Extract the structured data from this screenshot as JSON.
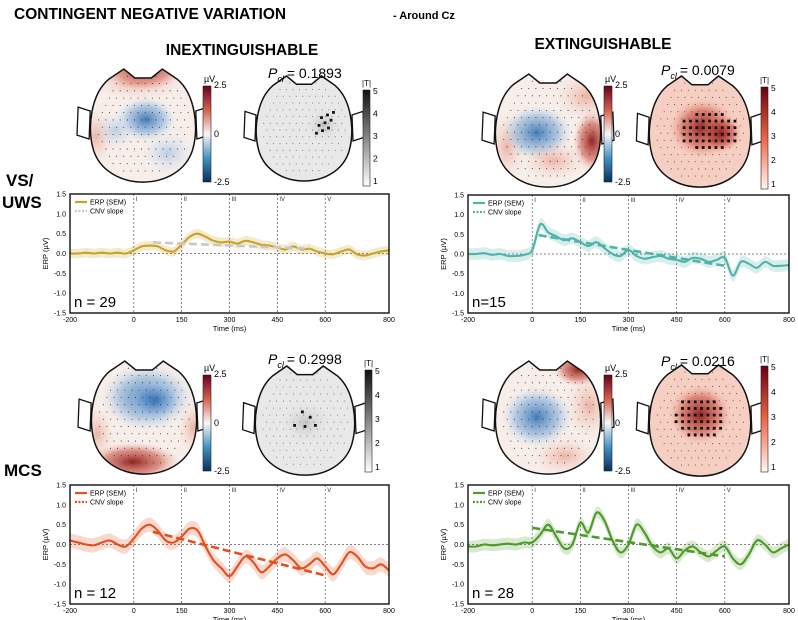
{
  "figure": {
    "title": "CONTINGENT NEGATIVE VARIATION",
    "subtitle": "- Around Cz",
    "columns": [
      "INEXTINGUISHABLE",
      "EXTINGUISHABLE"
    ],
    "rows": [
      [
        "VS/",
        "UWS"
      ],
      [
        "MCS"
      ]
    ]
  },
  "colorbars": {
    "uv_unit": "µV",
    "uv_ticks": [
      "2.5",
      "0",
      "-2.5"
    ],
    "t_unit": "|T|",
    "t_ticks": [
      "5",
      "4",
      "3",
      "2",
      "1"
    ]
  },
  "topomaps": [
    {
      "id": "vs-inext",
      "p_prefix": "P",
      "p_sub": "cl",
      "p_value": "= 0.1893",
      "pattern": "vs_inext"
    },
    {
      "id": "vs-ext",
      "p_prefix": "P",
      "p_sub": "cl",
      "p_value": "= 0.0079",
      "pattern": "vs_ext"
    },
    {
      "id": "mcs-inext",
      "p_prefix": "P",
      "p_sub": "cl",
      "p_value": "= 0.2998",
      "pattern": "mcs_inext"
    },
    {
      "id": "mcs-ext",
      "p_prefix": "P",
      "p_sub": "cl",
      "p_value": "= 0.0216",
      "pattern": "mcs_ext"
    }
  ],
  "colors": {
    "vs_inext": "#c9a227",
    "vs_ext": "#4fb3a9",
    "mcs_inext": "#e2501f",
    "mcs_ext": "#4c9a2a",
    "red": "#8b1a1a",
    "blue": "#2f6db0"
  },
  "chart_data": [
    {
      "type": "line",
      "id": "vs-inext",
      "group": "VS/UWS",
      "condition": "INEXTINGUISHABLE",
      "n_label": "n = 29",
      "xlabel": "Time (ms)",
      "ylabel": "ERP (µV)",
      "xlim": [
        -200,
        800
      ],
      "ylim": [
        -1.5,
        1.5
      ],
      "xticks": [
        "-200",
        "0",
        "150",
        "300",
        "450",
        "600",
        "800"
      ],
      "yticks": [
        "1.5",
        "1.0",
        "0.5",
        "0.0",
        "-0.5",
        "-1.0",
        "-1.5"
      ],
      "stimulus_marks": [
        0,
        150,
        300,
        450,
        600
      ],
      "stimulus_labels": [
        "I",
        "II",
        "III",
        "IV",
        "V"
      ],
      "legend": [
        "ERP (SEM)",
        "CNV slope"
      ],
      "x": [
        -200,
        -175,
        -150,
        -125,
        -100,
        -75,
        -50,
        -25,
        0,
        25,
        50,
        75,
        100,
        125,
        150,
        175,
        200,
        225,
        250,
        275,
        300,
        325,
        350,
        375,
        400,
        425,
        450,
        475,
        500,
        525,
        550,
        575,
        600,
        625,
        650,
        675,
        700,
        725,
        750,
        775,
        800
      ],
      "erp": [
        0.0,
        0.0,
        0.02,
        0.0,
        0.02,
        0.0,
        0.02,
        0.0,
        0.08,
        0.18,
        0.2,
        0.18,
        0.08,
        0.05,
        0.22,
        0.42,
        0.5,
        0.42,
        0.32,
        0.28,
        0.3,
        0.25,
        0.32,
        0.28,
        0.22,
        0.2,
        0.15,
        0.1,
        0.18,
        0.1,
        0.12,
        0.05,
        0.0,
        -0.02,
        0.05,
        0.1,
        -0.02,
        -0.05,
        0.0,
        0.05,
        0.08
      ],
      "sem": 0.12,
      "cnv_slope": {
        "x": [
          60,
          550
        ],
        "y": [
          0.28,
          0.12
        ]
      }
    },
    {
      "type": "line",
      "id": "vs-ext",
      "group": "VS/UWS",
      "condition": "EXTINGUISHABLE",
      "n_label": "n=15",
      "xlabel": "Time (ms)",
      "ylabel": "ERP (µV)",
      "xlim": [
        -200,
        800
      ],
      "ylim": [
        -1.5,
        1.5
      ],
      "xticks": [
        "-200",
        "0",
        "150",
        "300",
        "450",
        "600",
        "800"
      ],
      "yticks": [
        "1.5",
        "1.0",
        "0.5",
        "0.0",
        "-0.5",
        "-1.0",
        "-1.5"
      ],
      "stimulus_marks": [
        0,
        150,
        300,
        450,
        600
      ],
      "stimulus_labels": [
        "I",
        "II",
        "III",
        "IV",
        "V"
      ],
      "legend": [
        "ERP (SEM)",
        "CNV slope"
      ],
      "x": [
        -200,
        -175,
        -150,
        -125,
        -100,
        -75,
        -50,
        -25,
        0,
        25,
        50,
        75,
        100,
        125,
        150,
        175,
        200,
        225,
        250,
        275,
        300,
        325,
        350,
        375,
        400,
        425,
        450,
        475,
        500,
        525,
        550,
        575,
        600,
        625,
        650,
        675,
        700,
        725,
        750,
        775,
        800
      ],
      "erp": [
        0.0,
        0.0,
        0.02,
        -0.02,
        0.0,
        -0.05,
        -0.05,
        -0.02,
        0.1,
        0.75,
        0.55,
        0.45,
        0.35,
        0.4,
        0.3,
        0.2,
        0.3,
        0.15,
        0.0,
        -0.05,
        0.1,
        -0.05,
        -0.12,
        -0.08,
        -0.05,
        -0.12,
        -0.15,
        -0.2,
        -0.1,
        -0.12,
        -0.2,
        -0.15,
        -0.1,
        -0.55,
        -0.2,
        -0.25,
        -0.35,
        -0.2,
        -0.3,
        -0.3,
        -0.28
      ],
      "sem": 0.15,
      "cnv_slope": {
        "x": [
          20,
          600
        ],
        "y": [
          0.48,
          -0.3
        ]
      }
    },
    {
      "type": "line",
      "id": "mcs-inext",
      "group": "MCS",
      "condition": "INEXTINGUISHABLE",
      "n_label": "n = 12",
      "xlabel": "Time (ms)",
      "ylabel": "ERP (µV)",
      "xlim": [
        -200,
        800
      ],
      "ylim": [
        -1.5,
        1.5
      ],
      "xticks": [
        "-200",
        "0",
        "150",
        "300",
        "450",
        "600",
        "800"
      ],
      "yticks": [
        "1.5",
        "1.0",
        "0.5",
        "0.0",
        "-0.5",
        "-1.0",
        "-1.5"
      ],
      "stimulus_marks": [
        0,
        150,
        300,
        450,
        600
      ],
      "stimulus_labels": [
        "I",
        "II",
        "III",
        "IV",
        "V"
      ],
      "legend": [
        "ERP (SEM)",
        "CNV slope"
      ],
      "x": [
        -200,
        -175,
        -150,
        -125,
        -100,
        -75,
        -50,
        -25,
        0,
        25,
        50,
        75,
        100,
        125,
        150,
        175,
        200,
        225,
        250,
        275,
        300,
        325,
        350,
        375,
        400,
        425,
        450,
        475,
        500,
        525,
        550,
        575,
        600,
        625,
        650,
        675,
        700,
        725,
        750,
        775,
        800
      ],
      "erp": [
        0.1,
        0.05,
        0.0,
        -0.02,
        0.05,
        0.1,
        0.0,
        -0.05,
        0.15,
        0.4,
        0.5,
        0.35,
        0.1,
        0.05,
        0.2,
        0.4,
        0.35,
        -0.05,
        -0.4,
        -0.6,
        -0.8,
        -0.55,
        -0.3,
        -0.45,
        -0.7,
        -0.55,
        -0.35,
        -0.25,
        -0.4,
        -0.6,
        -0.5,
        -0.35,
        -0.55,
        -0.75,
        -0.5,
        -0.2,
        -0.3,
        -0.55,
        -0.6,
        -0.5,
        -0.65
      ],
      "sem": 0.18,
      "cnv_slope": {
        "x": [
          60,
          600
        ],
        "y": [
          0.32,
          -0.78
        ]
      }
    },
    {
      "type": "line",
      "id": "mcs-ext",
      "group": "MCS",
      "condition": "EXTINGUISHABLE",
      "n_label": "n = 28",
      "xlabel": "Time (ms)",
      "ylabel": "ERP (µV)",
      "xlim": [
        -200,
        800
      ],
      "ylim": [
        -1.5,
        1.5
      ],
      "xticks": [
        "-200",
        "0",
        "150",
        "300",
        "450",
        "600",
        "800"
      ],
      "yticks": [
        "1.5",
        "1.0",
        "0.5",
        "0.0",
        "-0.5",
        "-1.0",
        "-1.5"
      ],
      "stimulus_marks": [
        0,
        150,
        300,
        450,
        600
      ],
      "stimulus_labels": [
        "I",
        "II",
        "III",
        "IV",
        "V"
      ],
      "legend": [
        "ERP (SEM)",
        "CNV slope"
      ],
      "x": [
        -200,
        -175,
        -150,
        -125,
        -100,
        -75,
        -50,
        -25,
        0,
        25,
        50,
        75,
        100,
        125,
        150,
        175,
        200,
        225,
        250,
        275,
        300,
        325,
        350,
        375,
        400,
        425,
        450,
        475,
        500,
        525,
        550,
        575,
        600,
        625,
        650,
        675,
        700,
        725,
        750,
        775,
        800
      ],
      "erp": [
        -0.05,
        -0.05,
        0.0,
        -0.02,
        0.0,
        0.02,
        0.0,
        0.05,
        0.05,
        0.25,
        0.5,
        0.2,
        -0.1,
        0.0,
        0.55,
        0.3,
        0.8,
        0.6,
        0.1,
        -0.2,
        0.0,
        0.5,
        0.3,
        -0.05,
        -0.2,
        -0.1,
        -0.35,
        -0.15,
        -0.05,
        -0.2,
        -0.3,
        -0.15,
        -0.05,
        -0.35,
        -0.5,
        -0.25,
        0.1,
        0.0,
        -0.2,
        -0.1,
        0.0
      ],
      "sem": 0.15,
      "cnv_slope": {
        "x": [
          0,
          600
        ],
        "y": [
          0.42,
          -0.3
        ]
      }
    }
  ]
}
